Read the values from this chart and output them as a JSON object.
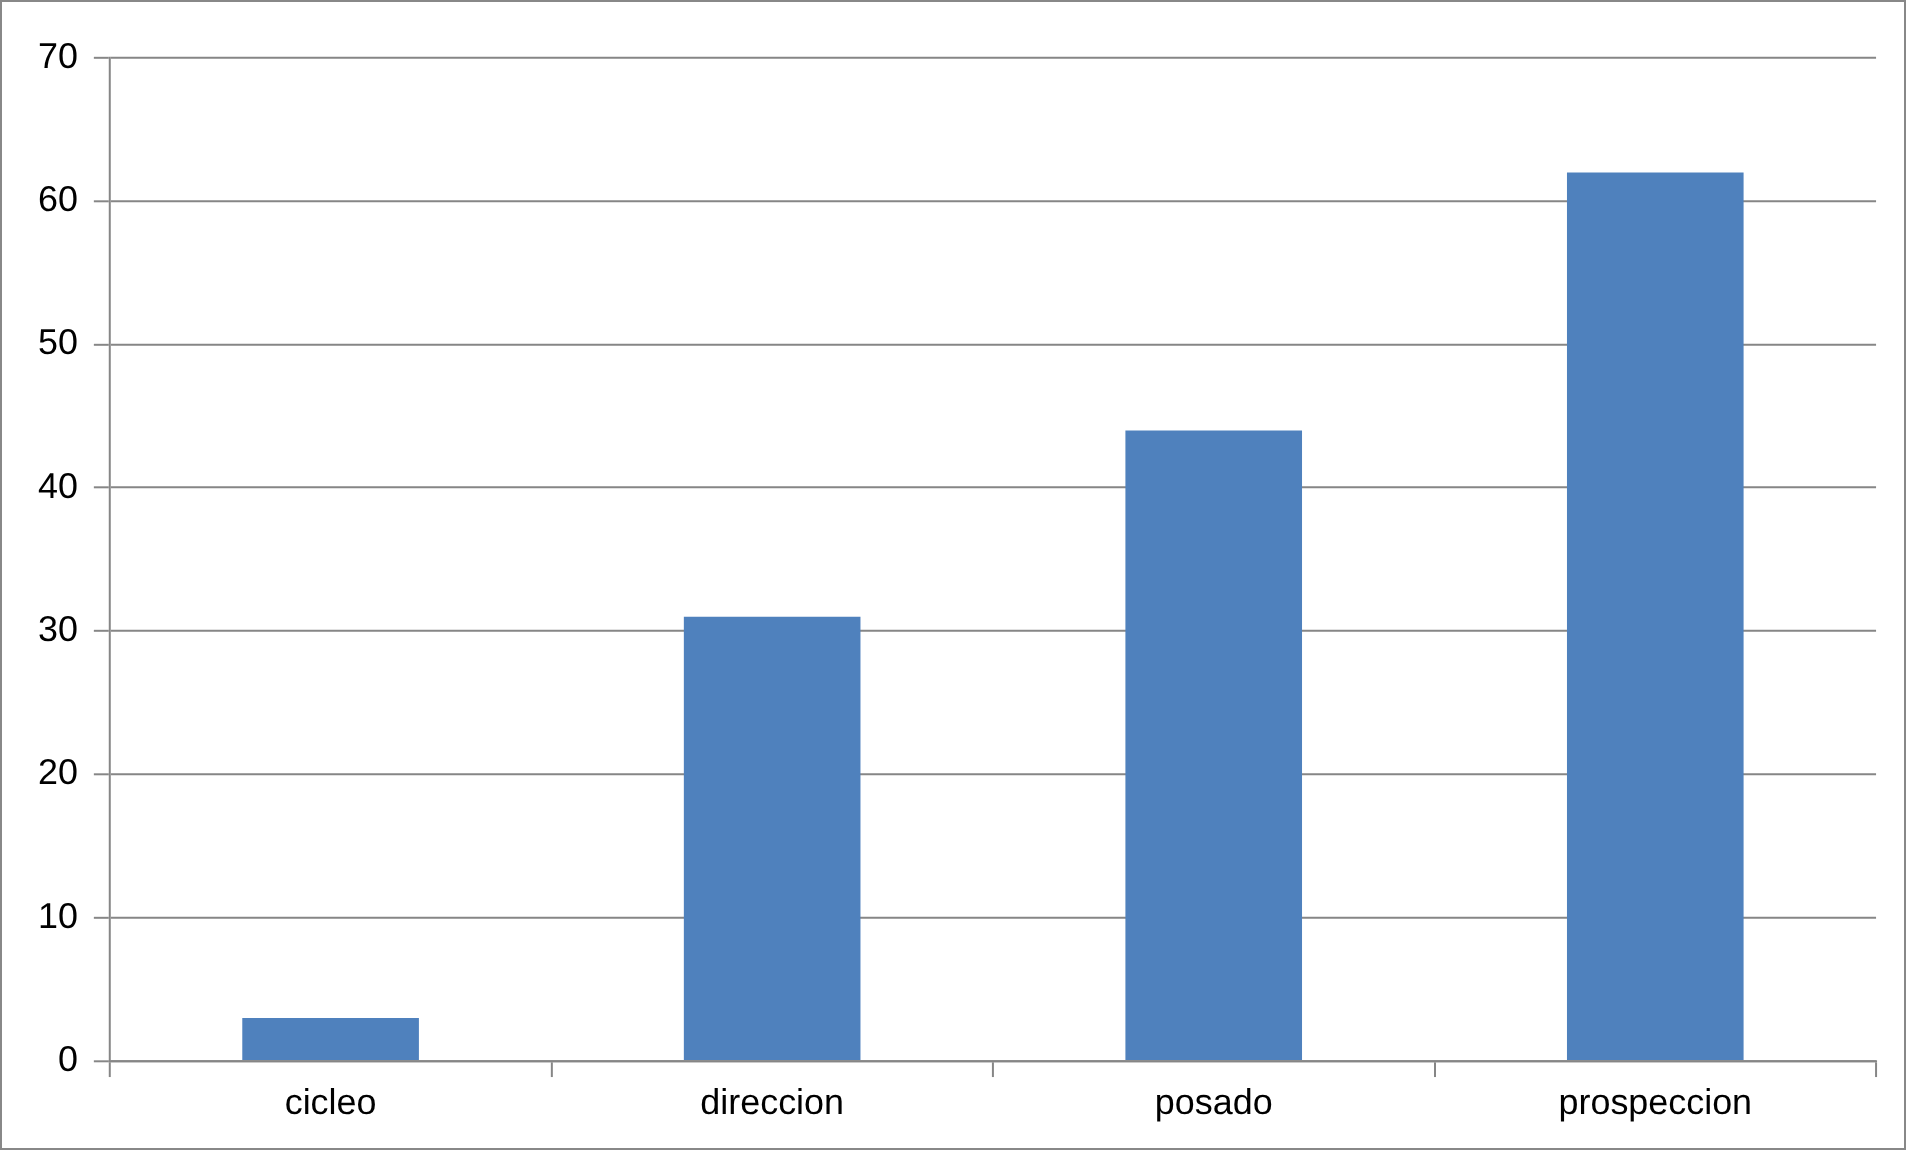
{
  "chart_data": {
    "type": "bar",
    "categories": [
      "cicleo",
      "direccion",
      "posado",
      "prospeccion"
    ],
    "values": [
      3,
      31,
      44,
      62
    ],
    "color": "#4f81bd",
    "ylim": [
      0,
      70
    ],
    "yticks": [
      0,
      10,
      20,
      30,
      40,
      50,
      60,
      70
    ],
    "grid": "y",
    "legend": false
  }
}
